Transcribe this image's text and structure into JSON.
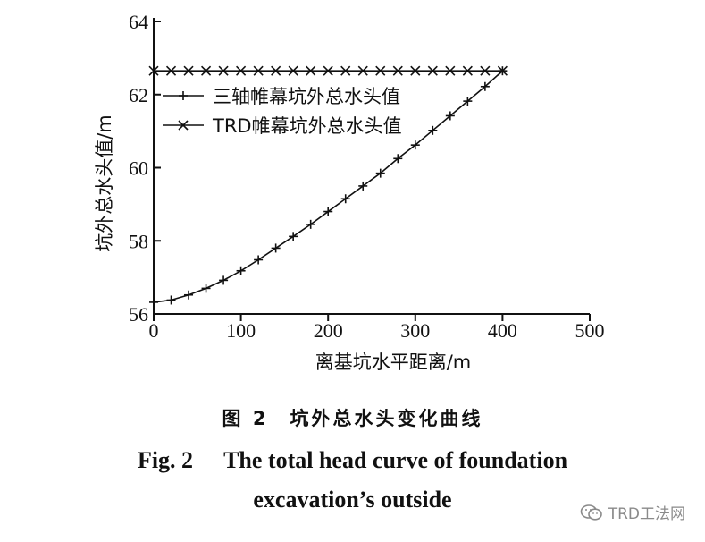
{
  "chart_data": {
    "type": "line",
    "xlabel": "离基坑水平距离/m",
    "ylabel": "坑外总水头值/m",
    "xlim": [
      0,
      500
    ],
    "ylim": [
      56,
      64
    ],
    "xticks": [
      0,
      100,
      200,
      300,
      400,
      500
    ],
    "yticks": [
      56,
      58,
      60,
      62,
      64
    ],
    "grid": false,
    "legend_position": "top-left",
    "series": [
      {
        "name": "三轴帷幕坑外总水头值",
        "marker": "plus",
        "x": [
          0,
          20,
          40,
          60,
          80,
          100,
          120,
          140,
          160,
          180,
          200,
          220,
          240,
          260,
          280,
          300,
          320,
          340,
          360,
          380,
          400
        ],
        "y": [
          56.32,
          56.38,
          56.52,
          56.7,
          56.92,
          57.18,
          57.48,
          57.8,
          58.12,
          58.45,
          58.8,
          59.15,
          59.5,
          59.85,
          60.25,
          60.62,
          61.02,
          61.42,
          61.82,
          62.22,
          62.65
        ]
      },
      {
        "name": "TRD帷幕坑外总水头值",
        "marker": "x",
        "x": [
          0,
          20,
          40,
          60,
          80,
          100,
          120,
          140,
          160,
          180,
          200,
          220,
          240,
          260,
          280,
          300,
          320,
          340,
          360,
          380,
          400
        ],
        "y": [
          62.65,
          62.65,
          62.65,
          62.65,
          62.65,
          62.65,
          62.65,
          62.65,
          62.65,
          62.65,
          62.65,
          62.65,
          62.65,
          62.65,
          62.65,
          62.65,
          62.65,
          62.65,
          62.65,
          62.65,
          62.65
        ]
      }
    ]
  },
  "caption": {
    "cn": "图 2　坑外总水头变化曲线",
    "en_fig": "Fig. 2",
    "en_line1": "The total head curve of foundation",
    "en_line2": "excavation’s outside"
  },
  "watermark": "TRD工法网"
}
